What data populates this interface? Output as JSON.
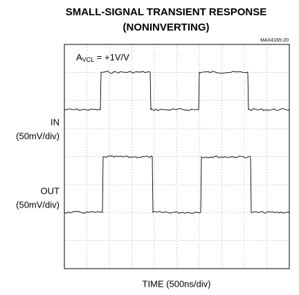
{
  "chart_data": {
    "type": "line",
    "title": [
      "SMALL-SIGNAL TRANSIENT RESPONSE",
      "(NONINVERTING)"
    ],
    "figure_id": "MAX4165-20",
    "annotation": {
      "main": "A",
      "sub": "VCL",
      "rest": " = +1V/V"
    },
    "channels": [
      {
        "name": "IN",
        "scale": "(50mV/div)"
      },
      {
        "name": "OUT",
        "scale": "(50mV/div)"
      }
    ],
    "x_label": "TIME (500ns/div)",
    "grid": true
  }
}
